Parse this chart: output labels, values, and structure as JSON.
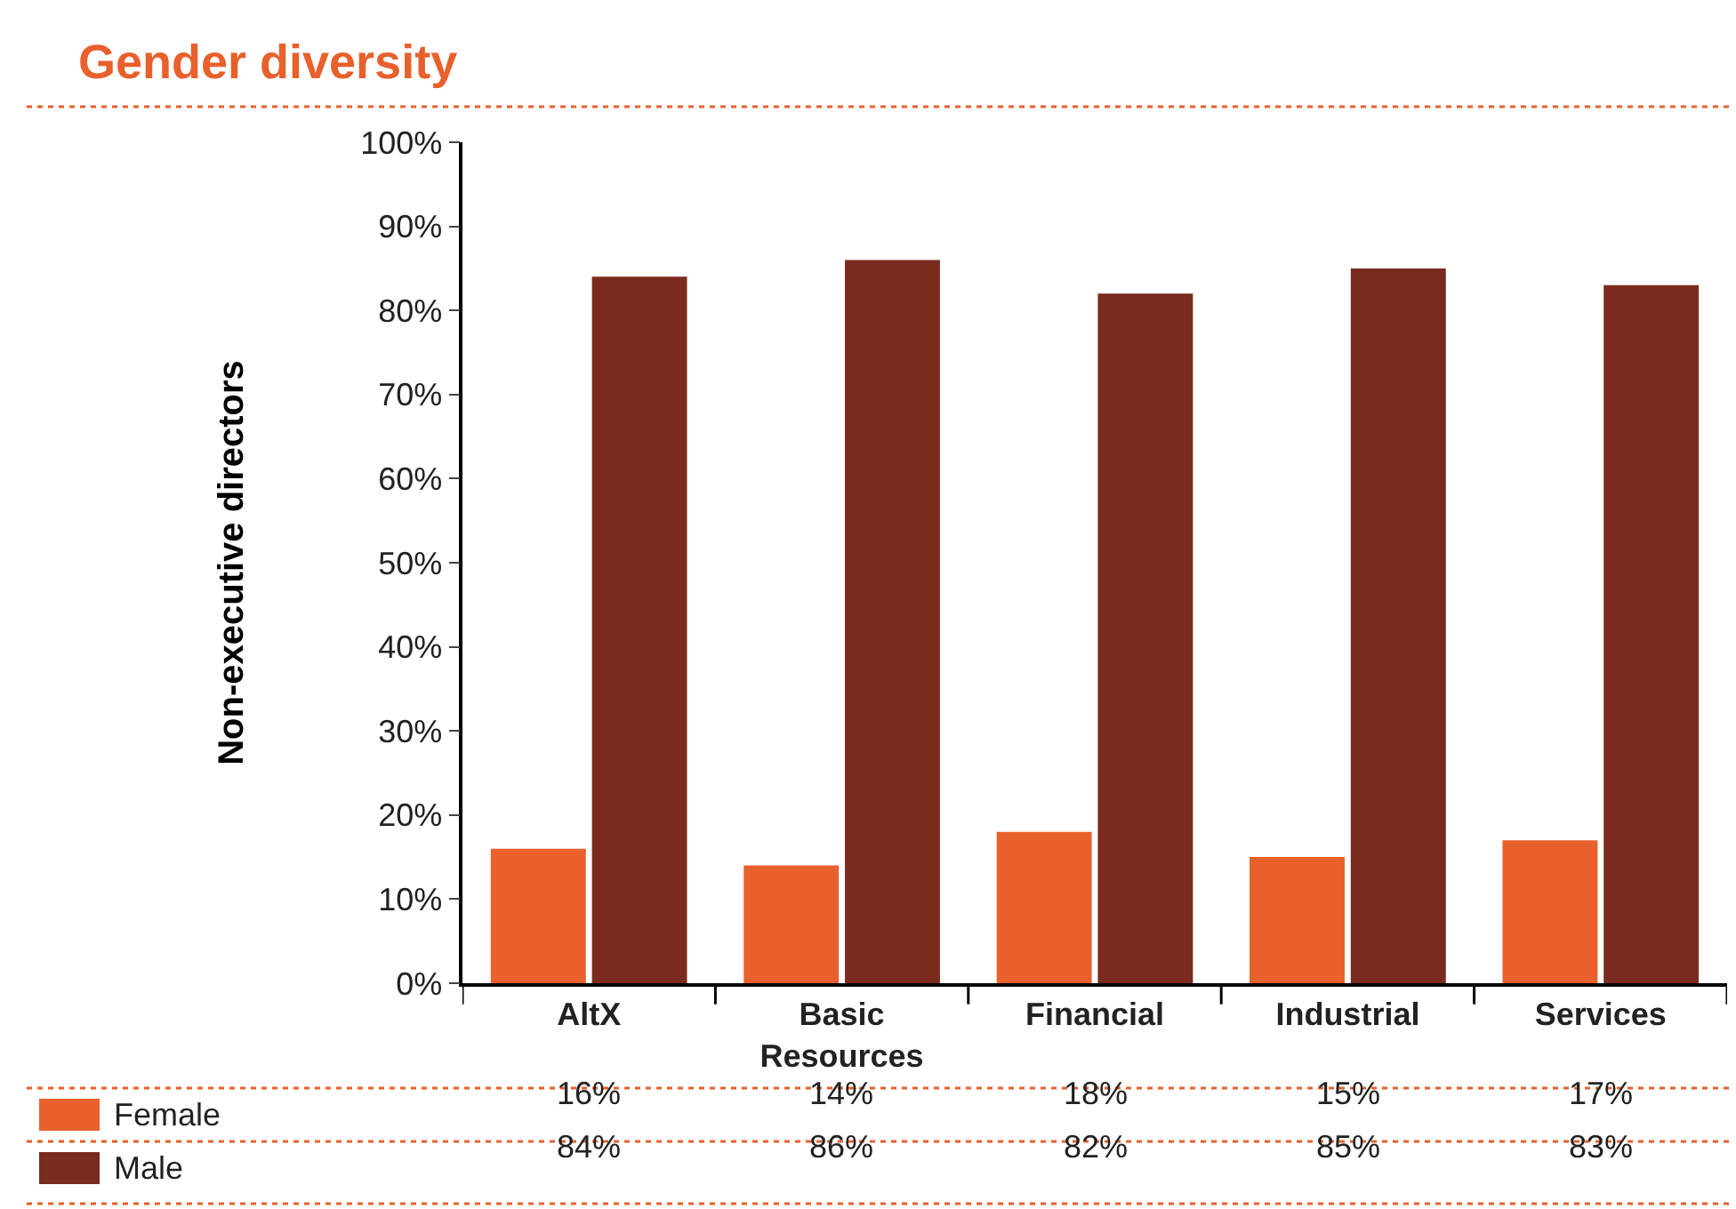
{
  "chart_data": {
    "type": "bar",
    "title": "Gender diversity",
    "ylabel": "Non-executive directors",
    "categories": [
      "AltX",
      "Basic Resources",
      "Financial",
      "Industrial",
      "Services"
    ],
    "series": [
      {
        "name": "Female",
        "color": "#e8602c",
        "values": [
          16,
          14,
          18,
          15,
          17
        ],
        "value_labels": [
          "16%",
          "14%",
          "18%",
          "15%",
          "17%"
        ]
      },
      {
        "name": "Male",
        "color": "#7b2a1e",
        "values": [
          84,
          86,
          82,
          85,
          83
        ],
        "value_labels": [
          "84%",
          "86%",
          "82%",
          "85%",
          "83%"
        ]
      }
    ],
    "ylim": [
      0,
      100
    ],
    "yticks": [
      {
        "value": 0,
        "label": "0%"
      },
      {
        "value": 10,
        "label": "10%"
      },
      {
        "value": 20,
        "label": "20%"
      },
      {
        "value": 30,
        "label": "30%"
      },
      {
        "value": 40,
        "label": "40%"
      },
      {
        "value": 50,
        "label": "50%"
      },
      {
        "value": 60,
        "label": "60%"
      },
      {
        "value": 70,
        "label": "70%"
      },
      {
        "value": 80,
        "label": "80%"
      },
      {
        "value": 90,
        "label": "90%"
      },
      {
        "value": 100,
        "label": "100%"
      }
    ],
    "legend": "bottom"
  }
}
